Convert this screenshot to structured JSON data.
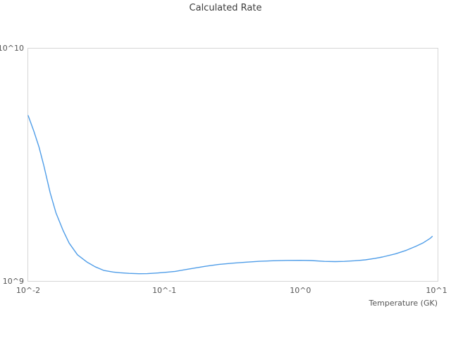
{
  "chart_data": {
    "type": "line",
    "title": "Calculated Rate",
    "xlabel": "Temperature (GK)",
    "ylabel": "",
    "x_scale": "log",
    "y_scale": "log",
    "xlim": [
      0.01,
      10.2
    ],
    "ylim": [
      1000000000.0,
      10000000000.0
    ],
    "grid": false,
    "legend": false,
    "x_ticks": [
      {
        "label": "10^-2",
        "value": 0.01
      },
      {
        "label": "10^-1",
        "value": 0.1
      },
      {
        "label": "10^0",
        "value": 1
      },
      {
        "label": "10^1",
        "value": 10
      }
    ],
    "y_ticks": [
      {
        "label": "10^9",
        "value": 1000000000.0
      },
      {
        "label": "10^10",
        "value": 10000000000.0
      }
    ],
    "colors": {
      "line": "#4f9de8",
      "axis_border": "#d6d6d6",
      "tick_text": "#555555",
      "title_text": "#3b3b3b",
      "background": "#ffffff"
    },
    "series": [
      {
        "name": "Calculated Rate",
        "color": "#4f9de8",
        "points": [
          [
            0.01,
            5150000000.0
          ],
          [
            0.011,
            4420000000.0
          ],
          [
            0.012,
            3780000000.0
          ],
          [
            0.013,
            3160000000.0
          ],
          [
            0.0145,
            2400000000.0
          ],
          [
            0.016,
            1970000000.0
          ],
          [
            0.018,
            1660000000.0
          ],
          [
            0.02,
            1460000000.0
          ],
          [
            0.023,
            1300000000.0
          ],
          [
            0.027,
            1210000000.0
          ],
          [
            0.031,
            1155000000.0
          ],
          [
            0.036,
            1113000000.0
          ],
          [
            0.042,
            1096000000.0
          ],
          [
            0.047,
            1089000000.0
          ],
          [
            0.055,
            1082000000.0
          ],
          [
            0.065,
            1078000000.0
          ],
          [
            0.075,
            1079000000.0
          ],
          [
            0.089,
            1086000000.0
          ],
          [
            0.104,
            1094000000.0
          ],
          [
            0.12,
            1103000000.0
          ],
          [
            0.15,
            1128000000.0
          ],
          [
            0.2,
            1160000000.0
          ],
          [
            0.25,
            1181000000.0
          ],
          [
            0.32,
            1197000000.0
          ],
          [
            0.4,
            1209000000.0
          ],
          [
            0.5,
            1219000000.0
          ],
          [
            0.63,
            1226000000.0
          ],
          [
            0.8,
            1230000000.0
          ],
          [
            1.0,
            1231000000.0
          ],
          [
            1.2,
            1228000000.0
          ],
          [
            1.5,
            1218000000.0
          ],
          [
            1.8,
            1215000000.0
          ],
          [
            2.1,
            1218000000.0
          ],
          [
            2.5,
            1226000000.0
          ],
          [
            3.0,
            1237000000.0
          ],
          [
            3.5,
            1253000000.0
          ],
          [
            4.0,
            1272000000.0
          ],
          [
            5.0,
            1313000000.0
          ],
          [
            6.0,
            1360000000.0
          ],
          [
            7.0,
            1412000000.0
          ],
          [
            8.0,
            1465000000.0
          ],
          [
            9.0,
            1532000000.0
          ],
          [
            9.3,
            1560000000.0
          ]
        ]
      }
    ]
  }
}
